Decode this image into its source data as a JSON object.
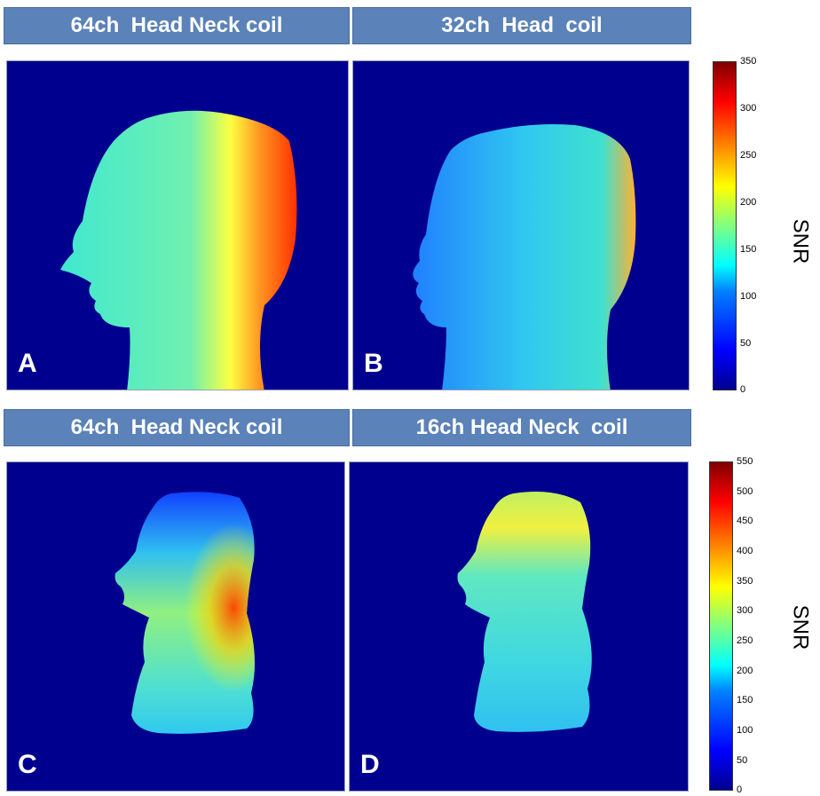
{
  "headers": {
    "top_left": "64ch  Head Neck coil",
    "top_right": "32ch  Head  coil",
    "bottom_left": "64ch  Head Neck coil",
    "bottom_right": "16ch Head Neck  coil"
  },
  "panels": {
    "a": "A",
    "b": "B",
    "c": "C",
    "d": "D"
  },
  "colorbar_top": {
    "label": "SNR",
    "ticks": [
      "350",
      "300",
      "250",
      "200",
      "150",
      "100",
      "50",
      "0"
    ]
  },
  "colorbar_bottom": {
    "label": "SNR",
    "ticks": [
      "550",
      "500",
      "450",
      "400",
      "350",
      "300",
      "250",
      "200",
      "150",
      "100",
      "50",
      "0"
    ]
  },
  "colors": {
    "header_bg": "#5b82b9",
    "panel_bg": "#00008f"
  }
}
